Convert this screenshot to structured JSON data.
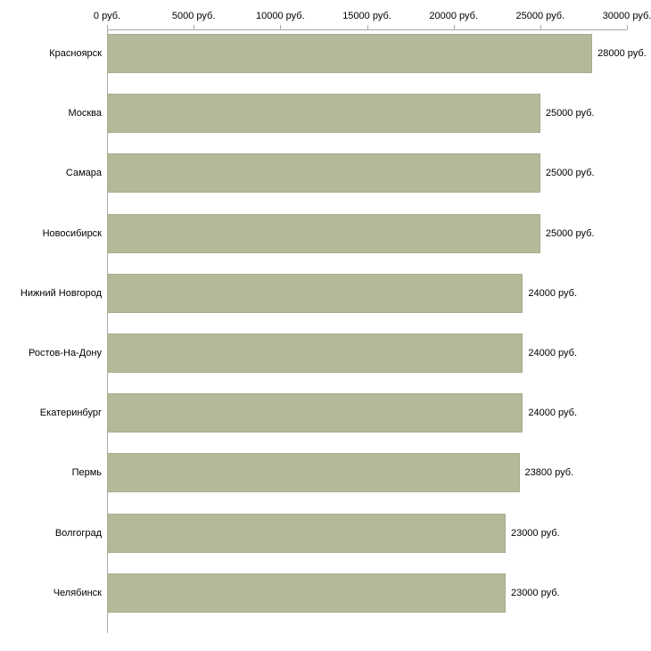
{
  "chart_data": {
    "type": "bar",
    "orientation": "horizontal",
    "title": "",
    "xlabel": "",
    "ylabel": "",
    "categories": [
      "Красноярск",
      "Москва",
      "Самара",
      "Новосибирск",
      "Нижний Новгород",
      "Ростов-На-Дону",
      "Екатеринбург",
      "Пермь",
      "Волгоград",
      "Челябинск"
    ],
    "values": [
      28000,
      25000,
      25000,
      25000,
      24000,
      24000,
      24000,
      23800,
      23000,
      23000
    ],
    "value_labels": [
      "28000 руб.",
      "25000 руб.",
      "25000 руб.",
      "25000 руб.",
      "24000 руб.",
      "24000 руб.",
      "24000 руб.",
      "23800 руб.",
      "23000 руб.",
      "23000 руб."
    ],
    "x_ticks": [
      0,
      5000,
      10000,
      15000,
      20000,
      25000,
      30000
    ],
    "x_tick_labels": [
      "0 руб.",
      "5000 руб.",
      "10000 руб.",
      "15000 руб.",
      "20000 руб.",
      "25000 руб.",
      "30000 руб."
    ],
    "xlim": [
      0,
      30000
    ],
    "grid": false,
    "legend": "none",
    "colors": {
      "bar_fill": "#b3b999",
      "bar_border": "#a8ae8e",
      "axis": "#a9a9a9",
      "text": "#000000",
      "background": "#ffffff"
    }
  },
  "layout_labels": {
    "chart_name": "salary-by-city-bar-chart"
  }
}
